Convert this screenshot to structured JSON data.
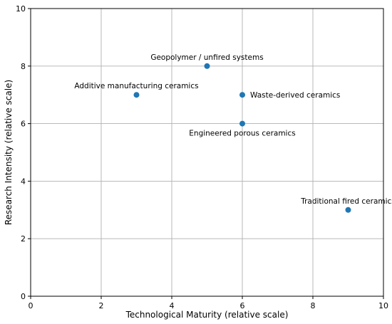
{
  "chart_data": {
    "type": "scatter",
    "title": "",
    "xlabel": "Technological Maturity (relative scale)",
    "ylabel": "Research Intensity (relative scale)",
    "xlim": [
      0,
      10
    ],
    "ylim": [
      0,
      10
    ],
    "xticks": [
      0,
      2,
      4,
      6,
      8,
      10
    ],
    "yticks": [
      0,
      2,
      4,
      6,
      8,
      10
    ],
    "grid": true,
    "marker_color": "#1f77b4",
    "points": [
      {
        "label": "Additive manufacturing ceramics",
        "x": 3,
        "y": 7,
        "label_position": "above"
      },
      {
        "label": "Geopolymer / unfired systems",
        "x": 5,
        "y": 8,
        "label_position": "above"
      },
      {
        "label": "Waste-derived ceramics",
        "x": 6,
        "y": 7,
        "label_position": "right"
      },
      {
        "label": "Engineered porous ceramics",
        "x": 6,
        "y": 6,
        "label_position": "below"
      },
      {
        "label": "Traditional fired ceramics",
        "x": 9,
        "y": 3,
        "label_position": "above"
      }
    ]
  }
}
